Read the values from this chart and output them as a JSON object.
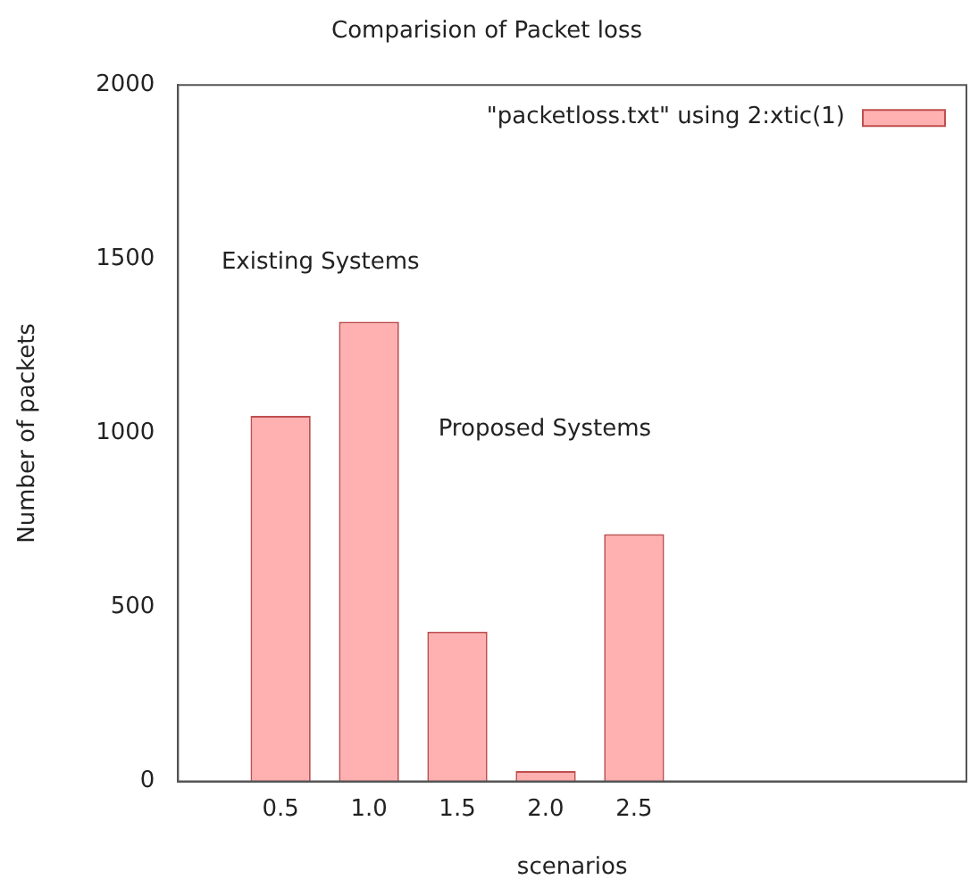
{
  "chart_data": {
    "type": "bar",
    "title": "Comparision of Packet loss",
    "xlabel": "scenarios",
    "ylabel": "Number of packets",
    "x": [
      0.5,
      1.0,
      1.5,
      2.0,
      2.5
    ],
    "xticks": [
      {
        "value": 0.5,
        "label": "0.5"
      },
      {
        "value": 1.0,
        "label": "1.0"
      },
      {
        "value": 1.5,
        "label": "1.5"
      },
      {
        "value": 2.0,
        "label": "2.0"
      },
      {
        "value": 2.5,
        "label": "2.5"
      }
    ],
    "xlim": [
      -0.08,
      4.38
    ],
    "series": [
      {
        "name": "\"packetloss.txt\" using 2:xtic(1)",
        "color": "#ffb0b0",
        "values": [
          1050,
          1320,
          430,
          30,
          710
        ]
      }
    ],
    "ylim": [
      0,
      2000
    ],
    "yticks": [
      0,
      500,
      1000,
      1500,
      2000
    ],
    "annotations": [
      "Existing Systems",
      "Proposed Systems"
    ],
    "legend": "top right",
    "grid": false
  }
}
